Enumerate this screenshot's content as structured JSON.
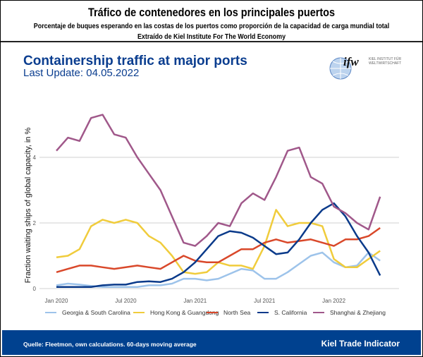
{
  "header": {
    "title": "Tráfico de contenedores en los principales puertos",
    "subtitle": "Porcentaje de buques esperando en las costas de los puertos como proporción de la capacidad de carga mundial total",
    "source": "Extraído de Kiel Institute For The World Economy"
  },
  "logo": {
    "text": "ifw",
    "line1": "KIEL INSTITUT FÜR",
    "line2": "WELTWIRTSCHAFT"
  },
  "footer": {
    "source": "Quelle: Fleetmon, own calculations. 60-days moving average",
    "brand": "Kiel Trade Indicator"
  },
  "chart_data": {
    "type": "line",
    "title": "Containership traffic at major ports",
    "subtitle": "Last Update: 04.05.2022",
    "ylabel": "Fraction waiting ships of global capacity, in %",
    "xlabel": "",
    "ylim": [
      0,
      6
    ],
    "xlim": [
      "2020-01",
      "2022-05"
    ],
    "yticks": [
      0,
      2,
      4
    ],
    "xticks": [
      {
        "date": "2020-01",
        "label": "Jan 2020"
      },
      {
        "date": "2020-07",
        "label": "Jul 2020"
      },
      {
        "date": "2021-01",
        "label": "Jan 2021"
      },
      {
        "date": "2021-07",
        "label": "Jul 2021"
      },
      {
        "date": "2022-01",
        "label": "Jan 2022"
      }
    ],
    "grid": "horizontal",
    "legend": "bottom",
    "x": [
      "2020-01",
      "2020-02",
      "2020-03",
      "2020-04",
      "2020-05",
      "2020-06",
      "2020-07",
      "2020-08",
      "2020-09",
      "2020-10",
      "2020-11",
      "2020-12",
      "2021-01",
      "2021-02",
      "2021-03",
      "2021-04",
      "2021-05",
      "2021-06",
      "2021-07",
      "2021-08",
      "2021-09",
      "2021-10",
      "2021-11",
      "2021-12",
      "2022-01",
      "2022-02",
      "2022-03",
      "2022-04",
      "2022-05"
    ],
    "series": [
      {
        "name": "Georgia & South Carolina",
        "color": "#9dc3ea",
        "values": [
          0.1,
          0.15,
          0.12,
          0.08,
          0.05,
          0.05,
          0.05,
          0.05,
          0.1,
          0.1,
          0.15,
          0.3,
          0.3,
          0.25,
          0.3,
          0.45,
          0.6,
          0.55,
          0.3,
          0.3,
          0.5,
          0.75,
          1.0,
          1.1,
          0.8,
          0.65,
          0.7,
          1.1,
          0.85
        ]
      },
      {
        "name": "Hong Kong & Guangdong",
        "color": "#f0cc3c",
        "values": [
          0.95,
          1.0,
          1.2,
          1.9,
          2.1,
          2.0,
          2.1,
          2.0,
          1.6,
          1.4,
          1.0,
          0.5,
          0.45,
          0.5,
          0.8,
          0.7,
          0.7,
          0.6,
          1.3,
          2.4,
          1.9,
          2.0,
          2.0,
          1.9,
          0.9,
          0.65,
          0.65,
          0.9,
          1.15
        ]
      },
      {
        "name": "North Sea",
        "color": "#d9482a",
        "values": [
          0.5,
          0.6,
          0.7,
          0.7,
          0.65,
          0.6,
          0.65,
          0.7,
          0.65,
          0.6,
          0.8,
          1.0,
          0.85,
          0.8,
          0.8,
          1.0,
          1.2,
          1.2,
          1.4,
          1.5,
          1.4,
          1.45,
          1.5,
          1.4,
          1.3,
          1.5,
          1.5,
          1.6,
          1.85
        ]
      },
      {
        "name": "S. California",
        "color": "#0a3a8a",
        "values": [
          0.05,
          0.05,
          0.05,
          0.05,
          0.1,
          0.12,
          0.12,
          0.2,
          0.22,
          0.2,
          0.3,
          0.5,
          0.8,
          1.2,
          1.6,
          1.75,
          1.7,
          1.55,
          1.3,
          1.05,
          1.1,
          1.5,
          2.0,
          2.4,
          2.6,
          2.2,
          1.6,
          1.1,
          0.4
        ]
      },
      {
        "name": "Shanghai & Zhejiang",
        "color": "#a0588a",
        "values": [
          4.2,
          4.6,
          4.5,
          5.2,
          5.3,
          4.7,
          4.6,
          4.0,
          3.5,
          3.0,
          2.2,
          1.4,
          1.3,
          1.6,
          2.0,
          1.9,
          2.6,
          2.9,
          2.7,
          3.4,
          4.2,
          4.3,
          3.4,
          3.2,
          2.5,
          2.3,
          2.0,
          1.8,
          2.8
        ]
      }
    ]
  }
}
